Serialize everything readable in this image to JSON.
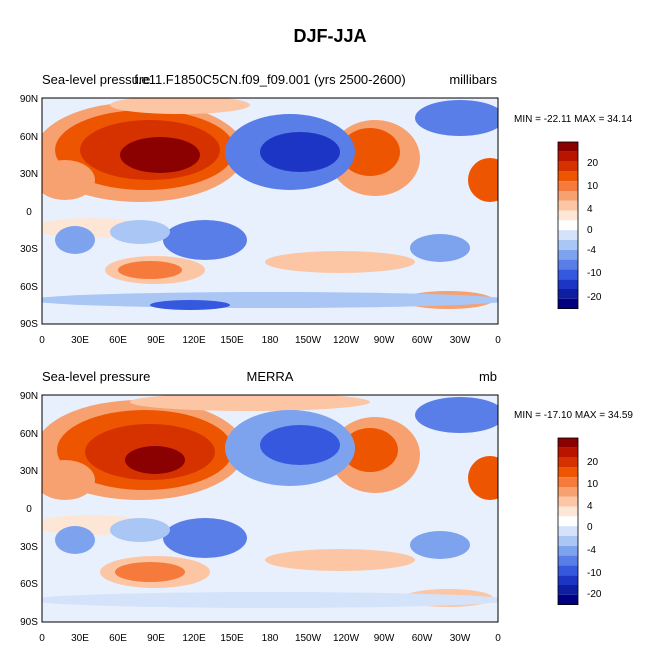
{
  "figure": {
    "title": "DJF-JJA"
  },
  "panels": [
    {
      "left_label": "Sea-level pressure",
      "center_label": "f.e11.F1850C5CN.f09_f09.001 (yrs 2500-2600)",
      "units": "millibars",
      "stats": "MIN = -22.11 MAX =  34.14"
    },
    {
      "left_label": "Sea-level pressure",
      "center_label": "MERRA",
      "units": "mb",
      "stats": "MIN = -17.10 MAX =  34.59"
    }
  ],
  "axes": {
    "lat_ticks": [
      "90N",
      "60N",
      "30N",
      "0",
      "30S",
      "60S",
      "90S"
    ],
    "lon_ticks": [
      "0",
      "30E",
      "60E",
      "90E",
      "120E",
      "150E",
      "180",
      "150W",
      "120W",
      "90W",
      "60W",
      "30W",
      "0"
    ]
  },
  "colorbar": {
    "labels": [
      "20",
      "10",
      "4",
      "0",
      "-4",
      "-10",
      "-20"
    ],
    "colors": [
      "#8b0000",
      "#b81400",
      "#d63200",
      "#ee5500",
      "#f57a3c",
      "#f7a170",
      "#fcc6a4",
      "#fde6d6",
      "#ffffff",
      "#d4e3fa",
      "#a9c6f5",
      "#7ea3ee",
      "#5a7ee8",
      "#3658df",
      "#1c35c4",
      "#0e1ea0",
      "#000080"
    ]
  },
  "chart_data": {
    "type": "heatmap",
    "title": "DJF-JJA",
    "variable": "Sea-level pressure",
    "contour_levels": [
      -20,
      -10,
      -4,
      0,
      4,
      10,
      20
    ],
    "panels": [
      {
        "source": "f.e11.F1850C5CN.f09_f09.001 (yrs 2500-2600)",
        "units": "millibars",
        "min": -22.11,
        "max": 34.14
      },
      {
        "source": "MERRA",
        "units": "mb",
        "min": -17.1,
        "max": 34.59
      }
    ]
  }
}
